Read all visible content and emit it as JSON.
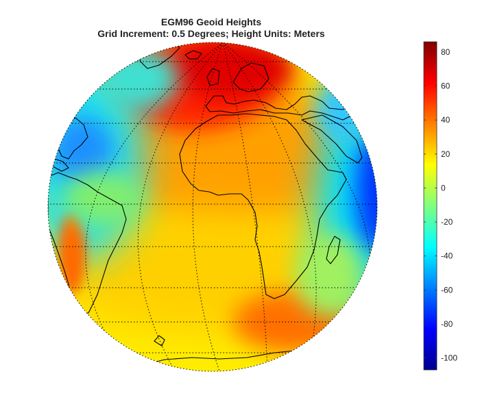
{
  "title": {
    "line1": "EGM96 Geoid Heights",
    "line2": "Grid Increment: 0.5 Degrees; Height Units: Meters"
  },
  "colorbar": {
    "min": -107,
    "max": 86,
    "ticks": [
      80,
      60,
      40,
      20,
      0,
      -20,
      -40,
      -60,
      -80,
      -100
    ],
    "colormap": "jet",
    "colors": [
      "#00008f",
      "#0000ff",
      "#00ffff",
      "#ffff00",
      "#ff0000",
      "#800000"
    ]
  },
  "map": {
    "projection": "orthographic",
    "graticule": "dotted",
    "coastline_color": "#000000"
  }
}
